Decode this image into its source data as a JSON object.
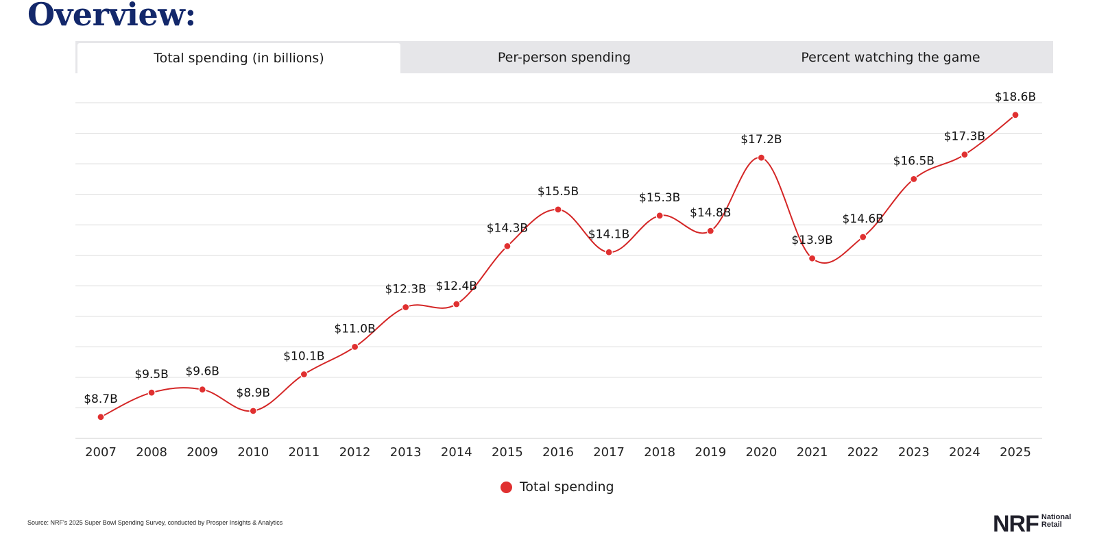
{
  "page": {
    "title": "Overview:",
    "source": "Source: NRF's 2025 Super Bowl Spending Survey, conducted by Prosper Insights & Analytics",
    "logo_mark": "NRF",
    "logo_text_1": "National",
    "logo_text_2": "Retail"
  },
  "tabs": [
    {
      "label": "Total spending (in billions)",
      "active": true
    },
    {
      "label": "Per-person spending",
      "active": false
    },
    {
      "label": "Percent watching the game",
      "active": false
    }
  ],
  "colors": {
    "line": "#d42626",
    "point": "#e03030",
    "grid": "#dcdcdc",
    "title": "#13286b"
  },
  "chart_data": {
    "type": "line",
    "title": "",
    "xlabel": "",
    "ylabel": "",
    "ylim": [
      8,
      19
    ],
    "grid": true,
    "legend": "bottom-center",
    "categories": [
      "2007",
      "2008",
      "2009",
      "2010",
      "2011",
      "2012",
      "2013",
      "2014",
      "2015",
      "2016",
      "2017",
      "2018",
      "2019",
      "2020",
      "2021",
      "2022",
      "2023",
      "2024",
      "2025"
    ],
    "series": [
      {
        "name": "Total spending",
        "values": [
          8.7,
          9.5,
          9.6,
          8.9,
          10.1,
          11.0,
          12.3,
          12.4,
          14.3,
          15.5,
          14.1,
          15.3,
          14.8,
          17.2,
          13.9,
          14.6,
          16.5,
          17.3,
          18.6
        ],
        "labels": [
          "$8.7B",
          "$9.5B",
          "$9.6B",
          "$8.9B",
          "$10.1B",
          "$11.0B",
          "$12.3B",
          "$12.4B",
          "$14.3B",
          "$15.5B",
          "$14.1B",
          "$15.3B",
          "$14.8B",
          "$17.2B",
          "$13.9B",
          "$14.6B",
          "$16.5B",
          "$17.3B",
          "$18.6B"
        ]
      }
    ]
  }
}
